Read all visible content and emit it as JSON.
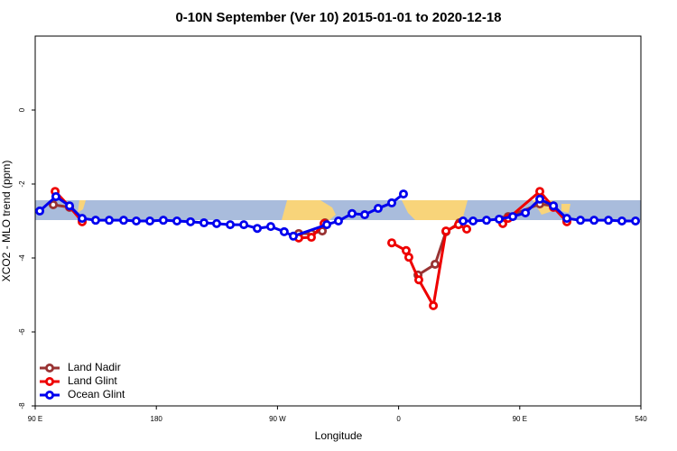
{
  "chart_data": {
    "type": "line",
    "title": "0-10N September (Ver 10)   2015-01-01 to 2020-12-18",
    "x_label": "Longitude",
    "y_label": "XCO2 - MLO trend (ppm)",
    "xlim": [
      90,
      540
    ],
    "ylim": [
      -8,
      2
    ],
    "xticks": [
      {
        "value": 90,
        "label": "90 E"
      },
      180,
      {
        "value": 270,
        "label": "90 W"
      },
      {
        "value": 360,
        "label": "0"
      },
      {
        "value": 450,
        "label": "90 E"
      },
      540
    ],
    "yticks": [
      -8,
      -6,
      -4,
      -2,
      0
    ],
    "legend": "bottom-left",
    "series": [
      {
        "name": "Land Nadir",
        "color": "#993333",
        "x": [
          103.4,
          115.5,
          124.9,
          null,
          285.8,
          295.2,
          303.3,
          305.3,
          null,
          374.4,
          387.1,
          395.2,
          405.2,
          null,
          437.4,
          441.4,
          464.9,
          475,
          485
        ],
        "values": [
          -2.56,
          -2.63,
          -2.98,
          null,
          -3.34,
          -3.34,
          -3.27,
          -3.05,
          null,
          -4.46,
          -4.17,
          -3.29,
          -3.05,
          null,
          -2.98,
          -2.88,
          -2.54,
          -2.59,
          -2.98
        ]
      },
      {
        "name": "Land Glint",
        "color": "#ee0000",
        "x": [
          104.8,
          115.5,
          124.9,
          null,
          285.8,
          295.2,
          304.6,
          null,
          354.9,
          365.6,
          367.6,
          375,
          385.8,
          395.2,
          404.5,
          410.6,
          null,
          437.4,
          441.4,
          464.9,
          475,
          485
        ],
        "values": [
          -2.2,
          -2.61,
          -3.02,
          null,
          -3.46,
          -3.44,
          -3.07,
          null,
          -3.59,
          -3.8,
          -3.98,
          -4.59,
          -5.29,
          -3.27,
          -3.1,
          -3.22,
          null,
          -3.07,
          -2.93,
          -2.2,
          -2.63,
          -3.02
        ]
      },
      {
        "name": "Ocean Glint",
        "color": "#0000ee",
        "x": [
          93.4,
          105.4,
          115.5,
          124.9,
          134.9,
          145,
          155.7,
          165.1,
          175.2,
          185.2,
          195.3,
          205.4,
          215.4,
          224.8,
          234.9,
          245,
          255,
          265,
          275,
          281.8,
          306.6,
          315.3,
          325.4,
          334.8,
          344.8,
          354.9,
          363.6,
          null,
          407.9,
          415.3,
          425.3,
          434.7,
          444.8,
          454.2,
          464.9,
          475,
          485,
          495.1,
          505.2,
          515.9,
          525.9,
          536
        ],
        "values": [
          -2.73,
          -2.34,
          -2.59,
          -2.93,
          -2.98,
          -2.98,
          -2.98,
          -3.0,
          -3.0,
          -2.98,
          -3.0,
          -3.02,
          -3.05,
          -3.07,
          -3.1,
          -3.1,
          -3.2,
          -3.15,
          -3.29,
          -3.41,
          -3.1,
          -3.0,
          -2.8,
          -2.83,
          -2.66,
          -2.51,
          -2.27,
          null,
          -3.0,
          -3.0,
          -2.98,
          -2.95,
          -2.88,
          -2.78,
          -2.41,
          -2.59,
          -2.93,
          -2.98,
          -2.98,
          -2.98,
          -3.0,
          -3.0
        ]
      }
    ]
  }
}
